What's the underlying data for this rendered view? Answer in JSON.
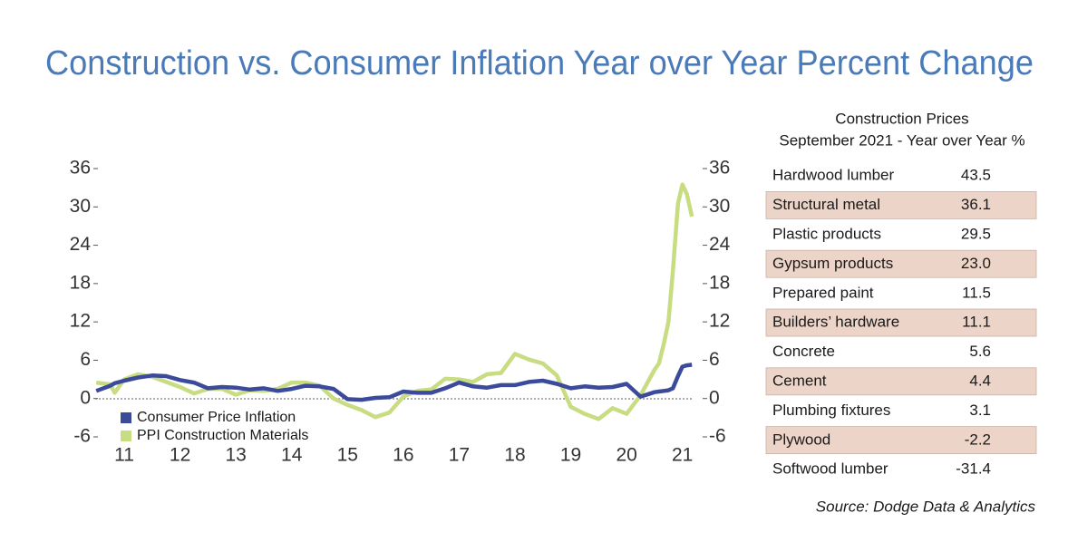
{
  "chart_data": {
    "type": "line",
    "title": "Construction vs. Consumer Inflation Year over Year Percent Change",
    "x": [
      2010.5,
      2010.75,
      2010.83,
      2011,
      2011.25,
      2011.5,
      2011.75,
      2012,
      2012.25,
      2012.5,
      2012.75,
      2013,
      2013.25,
      2013.5,
      2013.75,
      2014,
      2014.25,
      2014.5,
      2014.75,
      2015,
      2015.25,
      2015.5,
      2015.75,
      2016,
      2016.25,
      2016.5,
      2016.75,
      2017,
      2017.25,
      2017.5,
      2017.75,
      2018,
      2018.25,
      2018.5,
      2018.75,
      2019,
      2019.25,
      2019.5,
      2019.75,
      2020,
      2020.25,
      2020.5,
      2020.58,
      2020.67,
      2020.75,
      2020.83,
      2020.92,
      2021,
      2021.08,
      2021.17
    ],
    "series": [
      {
        "name": "Consumer Price Inflation",
        "color": "#3b4a9a",
        "values": [
          1.2,
          2.0,
          2.4,
          2.8,
          3.3,
          3.6,
          3.5,
          2.9,
          2.5,
          1.6,
          1.8,
          1.7,
          1.4,
          1.6,
          1.2,
          1.5,
          2.0,
          1.9,
          1.5,
          -0.1,
          -0.2,
          0.1,
          0.2,
          1.1,
          0.9,
          0.9,
          1.6,
          2.5,
          1.9,
          1.7,
          2.1,
          2.1,
          2.6,
          2.8,
          2.3,
          1.6,
          1.9,
          1.7,
          1.8,
          2.3,
          0.3,
          1.0,
          1.1,
          1.2,
          1.3,
          1.6,
          3.5,
          5.0,
          5.2,
          5.3
        ]
      },
      {
        "name": "PPI Construction Materials",
        "color": "#c8dc82",
        "values": [
          2.5,
          2.2,
          0.9,
          3.0,
          3.8,
          3.4,
          2.6,
          1.8,
          0.8,
          1.5,
          1.5,
          0.6,
          1.3,
          1.2,
          1.5,
          2.5,
          2.5,
          2.0,
          0.0,
          -1.0,
          -1.8,
          -2.9,
          -2.2,
          0.3,
          1.2,
          1.4,
          3.1,
          3.0,
          2.6,
          3.8,
          4.0,
          7.0,
          6.1,
          5.5,
          3.6,
          -1.3,
          -2.4,
          -3.2,
          -1.5,
          -2.4,
          0.5,
          4.5,
          5.5,
          8.7,
          12.0,
          20.0,
          30.5,
          33.5,
          32.0,
          28.5
        ]
      }
    ],
    "xlim": [
      2010.48,
      2021.2
    ],
    "xticks": [
      {
        "value": 2011,
        "label": "11"
      },
      {
        "value": 2012,
        "label": "12"
      },
      {
        "value": 2013,
        "label": "13"
      },
      {
        "value": 2014,
        "label": "14"
      },
      {
        "value": 2015,
        "label": "15"
      },
      {
        "value": 2016,
        "label": "16"
      },
      {
        "value": 2017,
        "label": "17"
      },
      {
        "value": 2018,
        "label": "18"
      },
      {
        "value": 2019,
        "label": "19"
      },
      {
        "value": 2020,
        "label": "20"
      },
      {
        "value": 2021,
        "label": "21"
      }
    ],
    "ylim": [
      -6,
      36
    ],
    "yticks": [
      -6,
      0,
      6,
      12,
      18,
      24,
      30,
      36
    ],
    "y2lim": [
      -6,
      36
    ],
    "y2ticks": [
      -6,
      0,
      6,
      12,
      18,
      24,
      30,
      36
    ],
    "legend": "lower left"
  },
  "table": {
    "title": [
      "Construction Prices",
      "September 2021 - Year over Year %"
    ],
    "rows": [
      [
        "Hardwood lumber",
        "43.5"
      ],
      [
        "Structural metal",
        "36.1"
      ],
      [
        "Plastic products",
        "29.5"
      ],
      [
        "Gypsum products",
        "23.0"
      ],
      [
        "Prepared paint",
        "11.5"
      ],
      [
        "Builders’ hardware",
        "11.1"
      ],
      [
        "Concrete",
        "5.6"
      ],
      [
        "Cement",
        "4.4"
      ],
      [
        "Plumbing fixtures",
        "3.1"
      ],
      [
        "Plywood",
        "-2.2"
      ],
      [
        "Softwood lumber",
        "-31.4"
      ]
    ]
  },
  "source": "Source: Dodge Data & Analytics"
}
